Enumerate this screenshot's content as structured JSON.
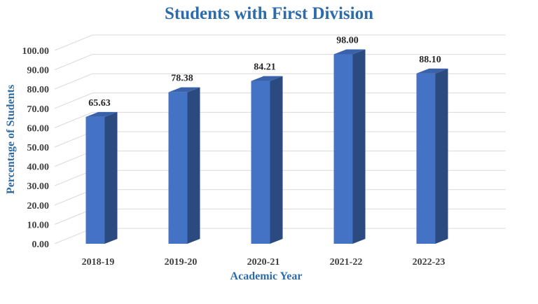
{
  "chart_data": {
    "type": "bar",
    "title": "Students with First Division",
    "xlabel": "Academic Year",
    "ylabel": "Percentage of Students",
    "categories": [
      "2018-19",
      "2019-20",
      "2020-21",
      "2021-22",
      "2022-23"
    ],
    "values": [
      65.63,
      78.38,
      84.21,
      98.0,
      88.1
    ],
    "data_labels": [
      "65.63",
      "78.38",
      "84.21",
      "98.00",
      "88.10"
    ],
    "yticks": [
      "0.00",
      "10.00",
      "20.00",
      "30.00",
      "40.00",
      "50.00",
      "60.00",
      "70.00",
      "80.00",
      "90.00",
      "100.00"
    ],
    "ylim": [
      0,
      100
    ],
    "grid": true,
    "style": "3d-column",
    "colors": {
      "bar_front": "#4472C4",
      "bar_side": "#2B4A80",
      "bar_top": "#3A62AA",
      "title": "#2E6CA9"
    }
  }
}
